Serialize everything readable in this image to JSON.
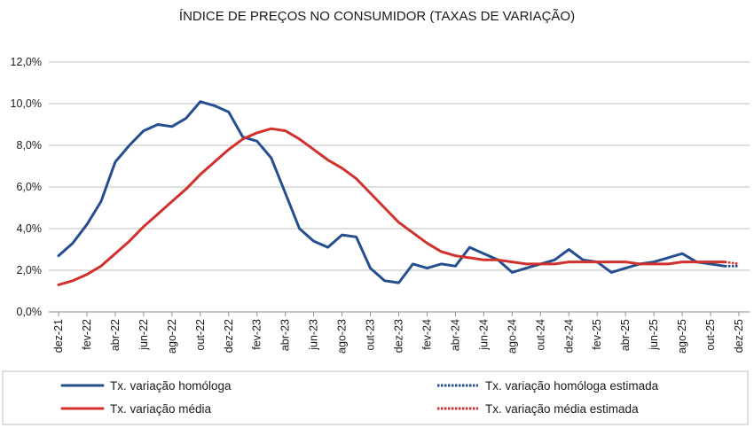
{
  "chart_data": {
    "type": "line",
    "title": "ÍNDICE DE PREÇOS NO CONSUMIDOR (TAXAS DE VARIAÇÃO)",
    "xlabel": "",
    "ylabel": "",
    "ylim": [
      0,
      12
    ],
    "yticks": [
      0,
      2,
      4,
      6,
      8,
      10,
      12
    ],
    "ytick_labels": [
      "0,0%",
      "2,0%",
      "4,0%",
      "6,0%",
      "8,0%",
      "10,0%",
      "12,0%"
    ],
    "grid": true,
    "legend_position": "bottom",
    "x": [
      "dez-21",
      "jan-22",
      "fev-22",
      "mar-22",
      "abr-22",
      "mai-22",
      "jun-22",
      "jul-22",
      "ago-22",
      "set-22",
      "out-22",
      "nov-22",
      "dez-22",
      "jan-23",
      "fev-23",
      "mar-23",
      "abr-23",
      "mai-23",
      "jun-23",
      "jul-23",
      "ago-23",
      "set-23",
      "out-23",
      "nov-23",
      "dez-23",
      "jan-24",
      "fev-24",
      "mar-24",
      "abr-24",
      "mai-24",
      "jun-24",
      "jul-24",
      "ago-24",
      "set-24",
      "out-24",
      "nov-24",
      "dez-24",
      "jan-25",
      "fev-25",
      "mar-25",
      "abr-25",
      "mai-25",
      "jun-25",
      "jul-25",
      "ago-25",
      "set-25",
      "out-25",
      "nov-25",
      "dez-25"
    ],
    "x_tick_labels": [
      "dez-21",
      "fev-22",
      "abr-22",
      "jun-22",
      "ago-22",
      "out-22",
      "dez-22",
      "fev-23",
      "abr-23",
      "jun-23",
      "ago-23",
      "out-23",
      "dez-23",
      "fev-24",
      "abr-24",
      "jun-24",
      "ago-24",
      "out-24",
      "dez-24",
      "fev-25",
      "abr-25",
      "jun-25",
      "ago-25",
      "out-25",
      "dez-25"
    ],
    "series": [
      {
        "name": "Tx. variação homóloga",
        "color": "#254E8F",
        "style": "solid",
        "values": [
          2.7,
          3.3,
          4.2,
          5.3,
          7.2,
          8.0,
          8.7,
          9.0,
          8.9,
          9.3,
          10.1,
          9.9,
          9.6,
          8.4,
          8.2,
          7.4,
          5.7,
          4.0,
          3.4,
          3.1,
          3.7,
          3.6,
          2.1,
          1.5,
          1.4,
          2.3,
          2.1,
          2.3,
          2.2,
          3.1,
          2.8,
          2.5,
          1.9,
          2.1,
          2.3,
          2.5,
          3.0,
          2.5,
          2.4,
          1.9,
          2.1,
          2.3,
          2.4,
          2.6,
          2.8,
          2.4,
          2.3,
          2.2,
          null
        ]
      },
      {
        "name": "Tx. variação média",
        "color": "#D0312D",
        "style": "solid",
        "values": [
          1.3,
          1.5,
          1.8,
          2.2,
          2.8,
          3.4,
          4.1,
          4.7,
          5.3,
          5.9,
          6.6,
          7.2,
          7.8,
          8.3,
          8.6,
          8.8,
          8.7,
          8.3,
          7.8,
          7.3,
          6.9,
          6.4,
          5.7,
          5.0,
          4.3,
          3.8,
          3.3,
          2.9,
          2.7,
          2.6,
          2.5,
          2.5,
          2.4,
          2.3,
          2.3,
          2.3,
          2.4,
          2.4,
          2.4,
          2.4,
          2.4,
          2.3,
          2.3,
          2.3,
          2.4,
          2.4,
          2.4,
          2.4,
          null
        ]
      },
      {
        "name": "Tx. variação homóloga estimada",
        "color": "#254E8F",
        "style": "dotted",
        "values": [
          null,
          null,
          null,
          null,
          null,
          null,
          null,
          null,
          null,
          null,
          null,
          null,
          null,
          null,
          null,
          null,
          null,
          null,
          null,
          null,
          null,
          null,
          null,
          null,
          null,
          null,
          null,
          null,
          null,
          null,
          null,
          null,
          null,
          null,
          null,
          null,
          null,
          null,
          null,
          null,
          null,
          null,
          null,
          null,
          null,
          null,
          null,
          2.2,
          2.2
        ]
      },
      {
        "name": "Tx. variação média  estimada",
        "color": "#D0312D",
        "style": "dotted",
        "values": [
          null,
          null,
          null,
          null,
          null,
          null,
          null,
          null,
          null,
          null,
          null,
          null,
          null,
          null,
          null,
          null,
          null,
          null,
          null,
          null,
          null,
          null,
          null,
          null,
          null,
          null,
          null,
          null,
          null,
          null,
          null,
          null,
          null,
          null,
          null,
          null,
          null,
          null,
          null,
          null,
          null,
          null,
          null,
          null,
          null,
          null,
          null,
          2.4,
          2.3
        ]
      }
    ]
  }
}
